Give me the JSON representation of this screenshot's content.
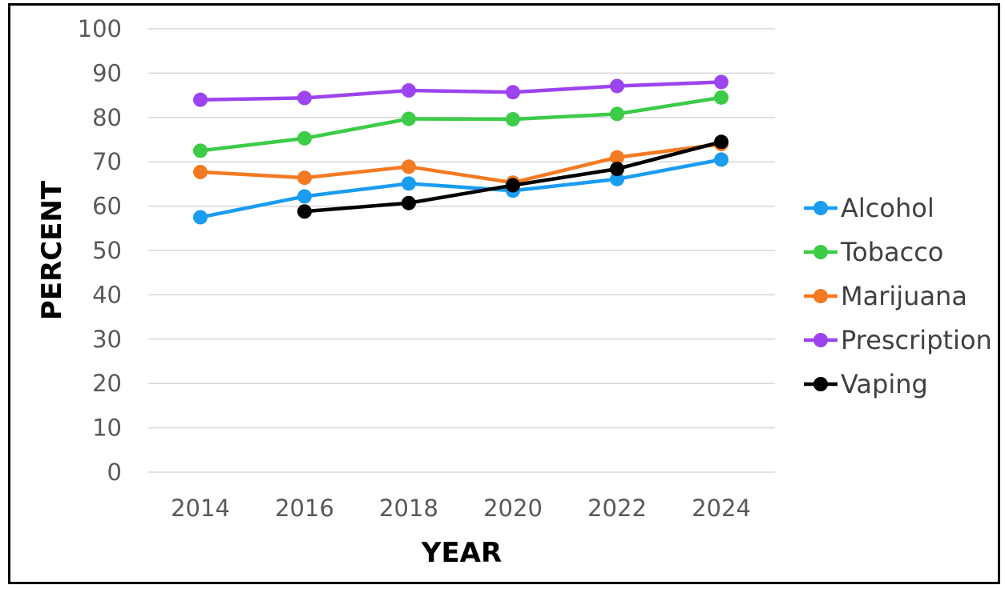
{
  "chart_data": {
    "type": "line",
    "title": "",
    "xlabel": "YEAR",
    "ylabel": "PERCENT",
    "x": [
      "2014",
      "2016",
      "2018",
      "2020",
      "2022",
      "2024"
    ],
    "ylim": [
      0,
      100
    ],
    "yticks": [
      "0",
      "10",
      "20",
      "30",
      "40",
      "50",
      "60",
      "70",
      "80",
      "90",
      "100"
    ],
    "grid": true,
    "legend_position": "right",
    "series": [
      {
        "name": "Alcohol",
        "color": "#1a9cf0",
        "values": [
          57.5,
          62.2,
          65.1,
          63.5,
          66.1,
          70.5
        ]
      },
      {
        "name": "Tobacco",
        "color": "#3ccc48",
        "values": [
          72.5,
          75.3,
          79.7,
          79.6,
          80.8,
          84.5
        ]
      },
      {
        "name": "Marijuana",
        "color": "#f47a22",
        "values": [
          67.7,
          66.4,
          68.9,
          65.3,
          71.0,
          74.0
        ]
      },
      {
        "name": "Prescription",
        "color": "#9b44f0",
        "values": [
          84.0,
          84.4,
          86.1,
          85.7,
          87.1,
          88.0
        ]
      },
      {
        "name": "Vaping",
        "color": "#000000",
        "values": [
          null,
          58.8,
          60.7,
          64.7,
          68.4,
          74.5
        ]
      }
    ]
  }
}
